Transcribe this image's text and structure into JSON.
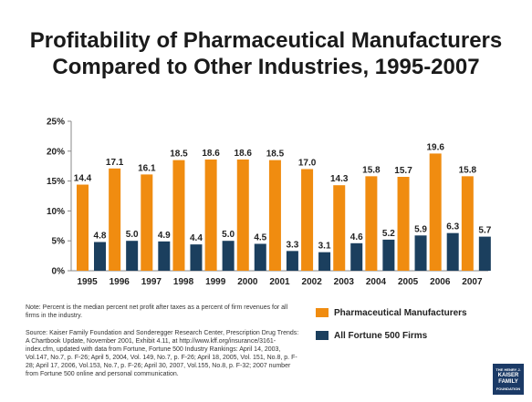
{
  "chart_data": {
    "type": "bar",
    "title": "Profitability of Pharmaceutical Manufacturers Compared to Other Industries, 1995-2007",
    "title_lines": [
      "Profitability of Pharmaceutical Manufacturers",
      "Compared to Other Industries, 1995-2007"
    ],
    "categories": [
      "1995",
      "1996",
      "1997",
      "1998",
      "1999",
      "2000",
      "2001",
      "2002",
      "2003",
      "2004",
      "2005",
      "2006",
      "2007"
    ],
    "series": [
      {
        "name": "Pharmaceutical Manufacturers",
        "color": "#f08c10",
        "values": [
          14.4,
          17.1,
          16.1,
          18.5,
          18.6,
          18.6,
          18.5,
          17.0,
          14.3,
          15.8,
          15.7,
          19.6,
          15.8
        ],
        "labels": [
          "14.4",
          "17.1",
          "16.1",
          "18.5",
          "18.6",
          "18.6",
          "18.5",
          "17.0",
          "14.3",
          "15.8",
          "15.7",
          "19.6",
          "15.8"
        ]
      },
      {
        "name": "All Fortune 500 Firms",
        "color": "#1b3f5e",
        "values": [
          4.8,
          5.0,
          4.9,
          4.4,
          5.0,
          4.5,
          3.3,
          3.1,
          4.6,
          5.2,
          5.9,
          6.3,
          5.7
        ],
        "labels": [
          "4.8",
          "5.0",
          "4.9",
          "4.4",
          "5.0",
          "4.5",
          "3.3",
          "3.1",
          "4.6",
          "5.2",
          "5.9",
          "6.3",
          "5.7"
        ]
      }
    ],
    "yticks": [
      "0%",
      "5%",
      "10%",
      "15%",
      "20%",
      "25%"
    ],
    "ylim": [
      0,
      25
    ],
    "legend": "bottom-right"
  },
  "note": "Note: Percent is the median percent net profit after taxes as a percent of firm revenues for all firms in the industry.",
  "source": "Source: Kaiser Family Foundation and Sonderegger Research Center, Prescription Drug Trends: A Chartbook Update, November 2001, Exhibit 4.11, at http://www.kff.org/insurance/3161-index.cfm, updated with data from Fortune, Fortune 500 Industry Rankings: April 14, 2003, Vol.147, No.7, p. F-26; April 5, 2004, Vol. 149, No.7, p. F-26; April 18, 2005, Vol. 151, No.8, p. F-28; April 17, 2006, Vol.153, No.7, p. F-26; April 30, 2007, Vol.155, No.8, p. F-32; 2007 number from Fortune 500 online and personal communication.",
  "logo": {
    "line1": "THE HENRY J.",
    "line2": "KAISER",
    "line3": "FAMILY",
    "line4": "FOUNDATION"
  }
}
